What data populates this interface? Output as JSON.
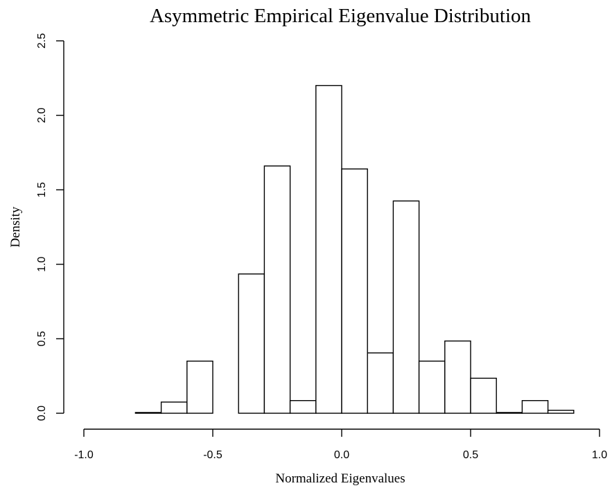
{
  "chart_data": {
    "type": "bar",
    "subtype": "histogram",
    "title": "Asymmetric Empirical Eigenvalue Distribution",
    "xlabel": "Normalized Eigenvalues",
    "ylabel": "Density",
    "xlim": [
      -1.0,
      1.0
    ],
    "ylim": [
      0,
      2.5
    ],
    "x_ticks": [
      "-1.0",
      "-0.5",
      "0.0",
      "0.5",
      "1.0"
    ],
    "y_ticks": [
      "0.0",
      "0.5",
      "1.0",
      "1.5",
      "2.0",
      "2.5"
    ],
    "bin_edges": [
      -0.8,
      -0.7,
      -0.6,
      -0.5,
      -0.4,
      -0.3,
      -0.2,
      -0.1,
      0.0,
      0.1,
      0.2,
      0.3,
      0.4,
      0.5,
      0.6,
      0.7,
      0.8,
      0.9
    ],
    "values": [
      0.005,
      0.075,
      0.35,
      0.0,
      0.935,
      1.66,
      0.085,
      2.2,
      1.64,
      0.405,
      1.425,
      0.35,
      0.485,
      0.235,
      0.005,
      0.085,
      0.02
    ],
    "grid": false,
    "legend": "none",
    "bar_fill": "#ffffff",
    "bar_stroke": "#000000"
  }
}
